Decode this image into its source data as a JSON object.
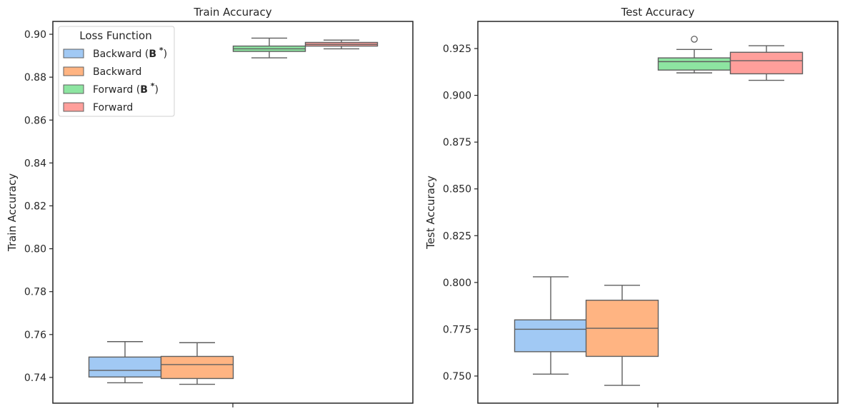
{
  "chart_data": [
    {
      "type": "box",
      "title": "Train Accuracy",
      "xlabel": "",
      "ylabel": "Train Accuracy",
      "ylim": [
        0.728,
        0.906
      ],
      "yticks": [
        "0.74",
        "0.76",
        "0.78",
        "0.80",
        "0.82",
        "0.84",
        "0.86",
        "0.88",
        "0.90"
      ],
      "ytick_values": [
        0.74,
        0.76,
        0.78,
        0.8,
        0.82,
        0.84,
        0.86,
        0.88,
        0.9
      ],
      "grid": false,
      "legend": {
        "title": "Loss Function",
        "placement": "top-left",
        "entries": [
          {
            "pre": "Backward (",
            "bold": "B",
            "sup": "*",
            "post": ")",
            "color": "#a1c9f4"
          },
          {
            "pre": "Backward",
            "bold": "",
            "sup": "",
            "post": "",
            "color": "#ffb482"
          },
          {
            "pre": "Forward (",
            "bold": "B",
            "sup": "*",
            "post": ")",
            "color": "#8de5a1"
          },
          {
            "pre": "Forward",
            "bold": "",
            "sup": "",
            "post": "",
            "color": "#ff9f9b"
          }
        ]
      },
      "series": [
        {
          "color": "#a1c9f4",
          "whislo": 0.7375,
          "q1": 0.7402,
          "med": 0.7433,
          "q3": 0.7495,
          "whishi": 0.7567,
          "outliers": []
        },
        {
          "color": "#ffb482",
          "whislo": 0.7368,
          "q1": 0.7395,
          "med": 0.746,
          "q3": 0.7498,
          "whishi": 0.7562,
          "outliers": []
        },
        {
          "color": "#8de5a1",
          "whislo": 0.889,
          "q1": 0.892,
          "med": 0.8932,
          "q3": 0.8945,
          "whishi": 0.8982,
          "outliers": []
        },
        {
          "color": "#ff9f9b",
          "whislo": 0.8932,
          "q1": 0.8945,
          "med": 0.8953,
          "q3": 0.8962,
          "whishi": 0.8973,
          "outliers": []
        }
      ]
    },
    {
      "type": "box",
      "title": "Test Accuracy",
      "xlabel": "",
      "ylabel": "Test Accuracy",
      "ylim": [
        0.7355,
        0.9395
      ],
      "yticks": [
        "0.750",
        "0.775",
        "0.800",
        "0.825",
        "0.850",
        "0.875",
        "0.900",
        "0.925"
      ],
      "ytick_values": [
        0.75,
        0.775,
        0.8,
        0.825,
        0.85,
        0.875,
        0.9,
        0.925
      ],
      "grid": false,
      "series": [
        {
          "color": "#a1c9f4",
          "whislo": 0.751,
          "q1": 0.763,
          "med": 0.775,
          "q3": 0.78,
          "whishi": 0.803,
          "outliers": []
        },
        {
          "color": "#ffb482",
          "whislo": 0.745,
          "q1": 0.7605,
          "med": 0.7755,
          "q3": 0.7905,
          "whishi": 0.7985,
          "outliers": []
        },
        {
          "color": "#8de5a1",
          "whislo": 0.912,
          "q1": 0.9135,
          "med": 0.918,
          "q3": 0.92,
          "whishi": 0.9245,
          "outliers": [
            0.93
          ]
        },
        {
          "color": "#ff9f9b",
          "whislo": 0.908,
          "q1": 0.9115,
          "med": 0.9185,
          "q3": 0.923,
          "whishi": 0.9265,
          "outliers": []
        }
      ]
    }
  ]
}
